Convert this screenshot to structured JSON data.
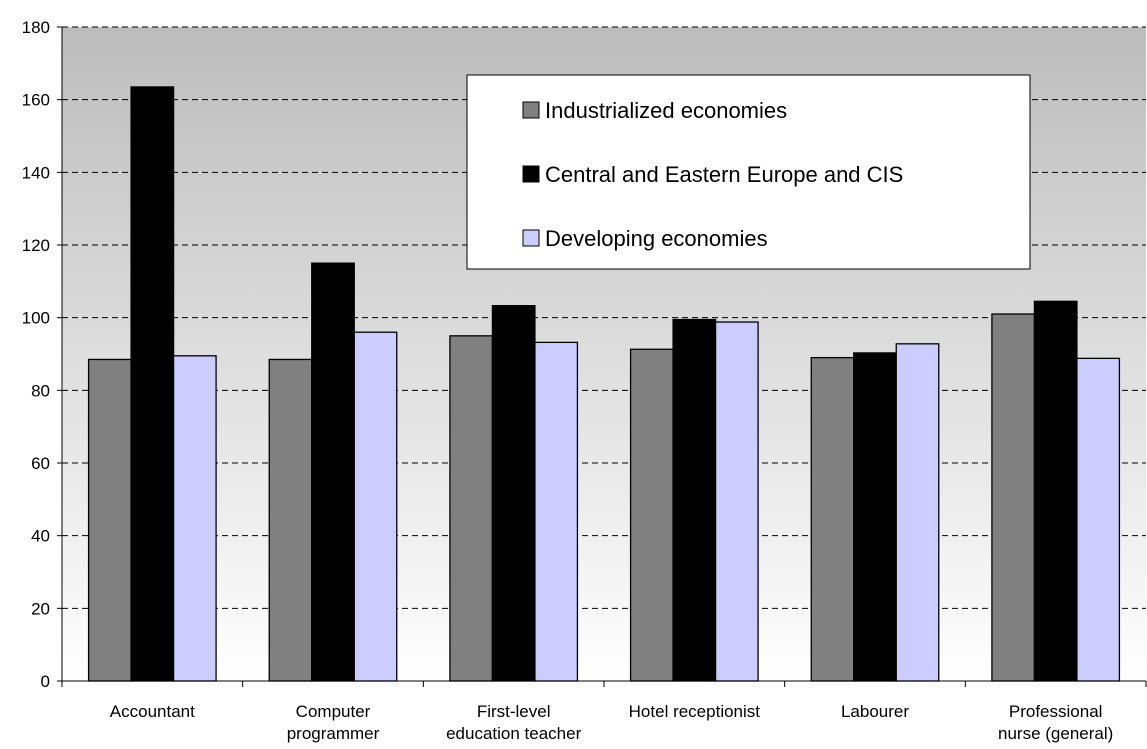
{
  "chart_data": {
    "type": "bar",
    "title": "",
    "xlabel": "",
    "ylabel": "",
    "ylim": [
      0,
      180
    ],
    "yticks": [
      0,
      20,
      40,
      60,
      80,
      100,
      120,
      140,
      160,
      180
    ],
    "grid": true,
    "legend_position": "top-right",
    "categories": [
      [
        "Accountant"
      ],
      [
        "Computer",
        "programmer"
      ],
      [
        "First-level",
        "education teacher"
      ],
      [
        "Hotel receptionist"
      ],
      [
        "Labourer"
      ],
      [
        "Professional",
        "nurse (general)"
      ]
    ],
    "series": [
      {
        "name": "Industrialized economies",
        "color": "#808080",
        "values": [
          88.5,
          88.5,
          95,
          91.3,
          89,
          101
        ]
      },
      {
        "name": "Central and Eastern Europe and CIS",
        "color": "#000000",
        "values": [
          163.5,
          115,
          103.3,
          99.5,
          90.3,
          104.5
        ]
      },
      {
        "name": "Developing economies",
        "color": "#ccccff",
        "values": [
          89.5,
          96,
          93.2,
          98.8,
          92.8,
          88.8
        ]
      }
    ]
  }
}
